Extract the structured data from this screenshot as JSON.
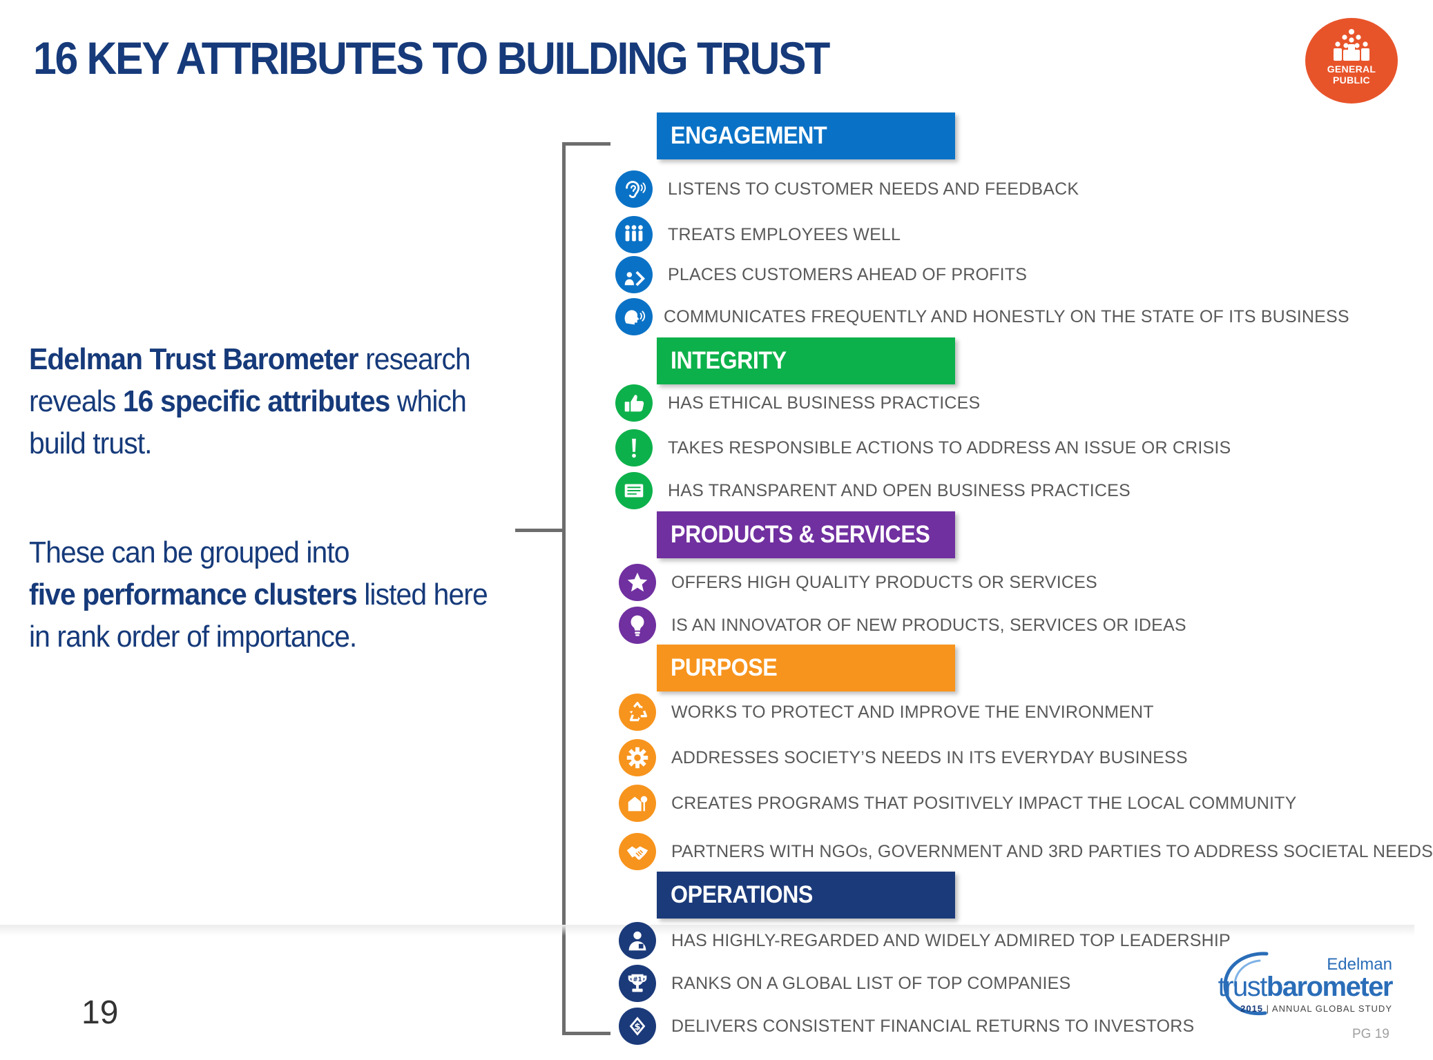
{
  "title": "16 KEY ATTRIBUTES TO BUILDING TRUST",
  "badge": {
    "line1": "GENERAL",
    "line2": "PUBLIC"
  },
  "intro": {
    "p1_bold1": "Edelman Trust Barometer",
    "p1_reg1": " research",
    "p1_reg2": "reveals ",
    "p1_bold2": "16 specific attributes",
    "p1_reg3": " which",
    "p1_reg4": "build trust.",
    "p2_reg1": "These can be grouped into",
    "p2_bold1": "five performance clusters",
    "p2_reg2": " listed here",
    "p2_reg3": "in rank order of importance."
  },
  "clusters": [
    {
      "name": "ENGAGEMENT",
      "color": "#0a72c6",
      "items": [
        {
          "text": "LISTENS TO CUSTOMER NEEDS AND FEEDBACK",
          "icon": "ear-icon"
        },
        {
          "text": "TREATS EMPLOYEES WELL",
          "icon": "people-icon"
        },
        {
          "text": "PLACES CUSTOMERS AHEAD OF PROFITS",
          "icon": "customer-icon"
        },
        {
          "text": "COMMUNICATES FREQUENTLY AND HONESTLY ON THE STATE OF ITS BUSINESS",
          "icon": "speaking-head-icon"
        }
      ]
    },
    {
      "name": "INTEGRITY",
      "color": "#0db14b",
      "items": [
        {
          "text": "HAS ETHICAL BUSINESS PRACTICES",
          "icon": "thumbs-up-icon"
        },
        {
          "text": "TAKES RESPONSIBLE ACTIONS TO ADDRESS AN ISSUE OR CRISIS",
          "icon": "exclamation-icon"
        },
        {
          "text": "HAS TRANSPARENT AND OPEN BUSINESS PRACTICES",
          "icon": "document-icon"
        }
      ]
    },
    {
      "name": "PRODUCTS & SERVICES",
      "color": "#7030a0",
      "items": [
        {
          "text": "OFFERS HIGH QUALITY PRODUCTS OR SERVICES",
          "icon": "star-icon"
        },
        {
          "text": "IS AN INNOVATOR OF NEW PRODUCTS, SERVICES OR IDEAS",
          "icon": "lightbulb-icon"
        }
      ]
    },
    {
      "name": "PURPOSE",
      "color": "#f7941d",
      "items": [
        {
          "text": "WORKS TO PROTECT AND IMPROVE THE ENVIRONMENT",
          "icon": "recycle-icon"
        },
        {
          "text": "ADDRESSES SOCIETY’S NEEDS IN ITS EVERYDAY BUSINESS",
          "icon": "gear-icon"
        },
        {
          "text": "CREATES PROGRAMS THAT POSITIVELY IMPACT THE LOCAL COMMUNITY",
          "icon": "community-icon"
        },
        {
          "text": "PARTNERS WITH NGOs, GOVERNMENT AND 3RD PARTIES TO ADDRESS SOCIETAL NEEDS",
          "icon": "handshake-icon"
        }
      ]
    },
    {
      "name": "OPERATIONS",
      "color": "#1b3a7a",
      "items": [
        {
          "text": "HAS HIGHLY-REGARDED AND WIDELY ADMIRED TOP LEADERSHIP",
          "icon": "leader-icon"
        },
        {
          "text": "RANKS ON A GLOBAL LIST OF TOP COMPANIES",
          "icon": "trophy-icon"
        },
        {
          "text": "DELIVERS CONSISTENT FINANCIAL RETURNS TO INVESTORS",
          "icon": "money-icon"
        }
      ]
    }
  ],
  "page_number": "19",
  "page_label": "PG 19",
  "logo": {
    "brand": "Edelman",
    "word1": "trust",
    "word2": "barometer",
    "year": "2015",
    "study": " | ANNUAL GLOBAL STUDY"
  }
}
